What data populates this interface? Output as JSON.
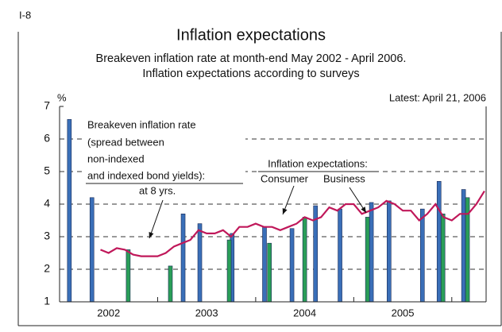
{
  "chart_data": {
    "type": "bar_line",
    "corner_label": "I-8",
    "title": "Inflation expectations",
    "subtitle": [
      "Breakeven inflation rate at month-end May 2002 - April 2006.",
      "Inflation expectations according to surveys"
    ],
    "ylabel": "%",
    "note": "Latest: April 21, 2006",
    "annotations": {
      "breakeven": [
        "Breakeven inflation rate",
        "(spread between",
        "non-indexed",
        "and indexed bond yields):",
        "at 8 yrs."
      ],
      "surveys": "Inflation expectations:",
      "consumer": "Consumer",
      "business": "Business"
    },
    "xlim": [
      2002,
      2006.35
    ],
    "xticks": [
      {
        "value": 2002.5,
        "label": "2002"
      },
      {
        "value": 2003.5,
        "label": "2003"
      },
      {
        "value": 2004.5,
        "label": "2004"
      },
      {
        "value": 2005.5,
        "label": "2005"
      }
    ],
    "ylim": [
      1,
      7
    ],
    "yticks": [
      1,
      2,
      3,
      4,
      5,
      6,
      7
    ],
    "grid": true,
    "line": {
      "color": "#c0185a",
      "x": [
        2002.417,
        2002.5,
        2002.583,
        2002.667,
        2002.75,
        2002.833,
        2002.917,
        2003.0,
        2003.083,
        2003.167,
        2003.25,
        2003.333,
        2003.417,
        2003.5,
        2003.583,
        2003.667,
        2003.75,
        2003.833,
        2003.917,
        2004.0,
        2004.083,
        2004.167,
        2004.25,
        2004.333,
        2004.417,
        2004.5,
        2004.583,
        2004.667,
        2004.75,
        2004.833,
        2004.917,
        2005.0,
        2005.083,
        2005.167,
        2005.25,
        2005.333,
        2005.417,
        2005.5,
        2005.583,
        2005.667,
        2005.75,
        2005.833,
        2005.917,
        2006.0,
        2006.083,
        2006.167,
        2006.25,
        2006.333
      ],
      "values": [
        2.6,
        2.5,
        2.65,
        2.6,
        2.45,
        2.4,
        2.4,
        2.4,
        2.5,
        2.7,
        2.8,
        2.9,
        3.2,
        3.1,
        3.1,
        3.2,
        3.0,
        3.3,
        3.3,
        3.4,
        3.3,
        3.3,
        3.2,
        3.3,
        3.4,
        3.6,
        3.5,
        3.6,
        3.9,
        3.8,
        4.0,
        4.0,
        3.7,
        3.8,
        3.9,
        4.1,
        4.0,
        3.8,
        3.8,
        3.5,
        3.7,
        4.0,
        3.6,
        3.5,
        3.7,
        3.7,
        4.0,
        4.4
      ]
    },
    "series": [
      {
        "name": "Consumer",
        "color": "#3a6fb8",
        "x": [
          2002.1,
          2002.33,
          2003.26,
          2003.43,
          2003.76,
          2004.09,
          2004.37,
          2004.61,
          2004.86,
          2005.18,
          2005.36,
          2005.7,
          2005.87,
          2006.12
        ],
        "values": [
          6.6,
          4.2,
          3.7,
          3.4,
          3.1,
          3.3,
          3.25,
          3.95,
          3.85,
          4.05,
          4.1,
          3.85,
          4.7,
          4.45
        ]
      },
      {
        "name": "Business",
        "color": "#2a9e58",
        "x": [
          2002.7,
          2003.13,
          2003.73,
          2004.14,
          2004.5,
          2005.14,
          2005.91,
          2006.16
        ],
        "values": [
          2.6,
          2.1,
          2.9,
          2.8,
          3.6,
          3.6,
          3.7,
          4.2
        ]
      }
    ]
  }
}
